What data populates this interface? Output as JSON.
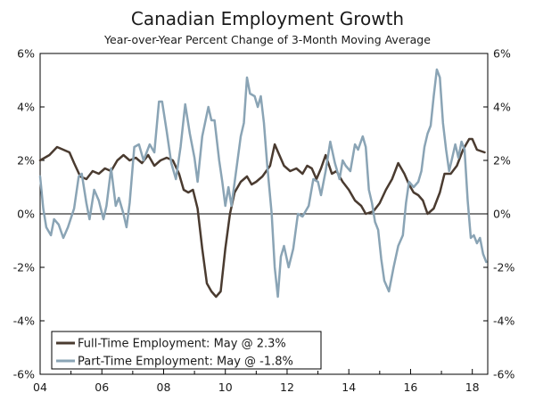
{
  "chart_data": {
    "type": "line",
    "title": "Canadian Employment Growth",
    "subtitle": "Year-over-Year Percent Change of 3-Month Moving Average",
    "xlabel": "",
    "ylabel": "",
    "xlim": [
      2004.0,
      2018.5
    ],
    "ylim": [
      -6,
      6
    ],
    "x_ticks": [
      2004,
      2006,
      2008,
      2010,
      2012,
      2014,
      2016,
      2018
    ],
    "x_tick_labels": [
      "04",
      "06",
      "08",
      "10",
      "12",
      "14",
      "16",
      "18"
    ],
    "y_ticks": [
      -6,
      -4,
      -2,
      0,
      2,
      4,
      6
    ],
    "y_tick_labels_left": [
      "-6%",
      "-4%",
      "-2%",
      "0%",
      "2%",
      "4%",
      "6%"
    ],
    "y_tick_labels_right": [
      "-6%",
      "-4%",
      "-2%",
      "0%",
      "2%",
      "4%",
      "6%"
    ],
    "legend_position": "bottom-left",
    "series": [
      {
        "name": "Full-Time Employment: May @ 2.3%",
        "color": "#4a3b30",
        "points": [
          [
            2004.0,
            2.0
          ],
          [
            2004.3,
            2.2
          ],
          [
            2004.55,
            2.5
          ],
          [
            2004.75,
            2.4
          ],
          [
            2004.95,
            2.3
          ],
          [
            2005.1,
            1.9
          ],
          [
            2005.3,
            1.4
          ],
          [
            2005.5,
            1.3
          ],
          [
            2005.7,
            1.6
          ],
          [
            2005.9,
            1.5
          ],
          [
            2006.1,
            1.7
          ],
          [
            2006.3,
            1.6
          ],
          [
            2006.5,
            2.0
          ],
          [
            2006.7,
            2.2
          ],
          [
            2006.9,
            2.0
          ],
          [
            2007.1,
            2.1
          ],
          [
            2007.3,
            1.9
          ],
          [
            2007.5,
            2.2
          ],
          [
            2007.7,
            1.8
          ],
          [
            2007.9,
            2.0
          ],
          [
            2008.1,
            2.1
          ],
          [
            2008.3,
            2.0
          ],
          [
            2008.5,
            1.5
          ],
          [
            2008.65,
            0.9
          ],
          [
            2008.8,
            0.8
          ],
          [
            2008.95,
            0.9
          ],
          [
            2009.1,
            0.2
          ],
          [
            2009.25,
            -1.3
          ],
          [
            2009.4,
            -2.6
          ],
          [
            2009.55,
            -2.9
          ],
          [
            2009.7,
            -3.1
          ],
          [
            2009.85,
            -2.9
          ],
          [
            2010.0,
            -1.3
          ],
          [
            2010.15,
            0.0
          ],
          [
            2010.3,
            0.8
          ],
          [
            2010.5,
            1.2
          ],
          [
            2010.7,
            1.4
          ],
          [
            2010.85,
            1.1
          ],
          [
            2011.0,
            1.2
          ],
          [
            2011.2,
            1.4
          ],
          [
            2011.45,
            1.8
          ],
          [
            2011.6,
            2.6
          ],
          [
            2011.75,
            2.2
          ],
          [
            2011.9,
            1.8
          ],
          [
            2012.1,
            1.6
          ],
          [
            2012.3,
            1.7
          ],
          [
            2012.5,
            1.5
          ],
          [
            2012.65,
            1.8
          ],
          [
            2012.8,
            1.7
          ],
          [
            2012.95,
            1.3
          ],
          [
            2013.1,
            1.7
          ],
          [
            2013.25,
            2.2
          ],
          [
            2013.45,
            1.5
          ],
          [
            2013.6,
            1.6
          ],
          [
            2013.8,
            1.2
          ],
          [
            2014.0,
            0.9
          ],
          [
            2014.2,
            0.5
          ],
          [
            2014.4,
            0.3
          ],
          [
            2014.55,
            0.0
          ],
          [
            2014.8,
            0.1
          ],
          [
            2015.0,
            0.4
          ],
          [
            2015.2,
            0.9
          ],
          [
            2015.4,
            1.3
          ],
          [
            2015.6,
            1.9
          ],
          [
            2015.8,
            1.5
          ],
          [
            2015.95,
            1.1
          ],
          [
            2016.1,
            0.8
          ],
          [
            2016.25,
            0.7
          ],
          [
            2016.4,
            0.5
          ],
          [
            2016.55,
            0.0
          ],
          [
            2016.75,
            0.2
          ],
          [
            2016.95,
            0.8
          ],
          [
            2017.1,
            1.5
          ],
          [
            2017.3,
            1.5
          ],
          [
            2017.5,
            1.8
          ],
          [
            2017.7,
            2.4
          ],
          [
            2017.9,
            2.8
          ],
          [
            2018.0,
            2.8
          ],
          [
            2018.15,
            2.4
          ],
          [
            2018.4,
            2.3
          ]
        ]
      },
      {
        "name": "Part-Time Employment: May @ -1.8%",
        "color": "#8aa4b5",
        "points": [
          [
            2004.0,
            1.4
          ],
          [
            2004.1,
            0.2
          ],
          [
            2004.2,
            -0.5
          ],
          [
            2004.35,
            -0.8
          ],
          [
            2004.45,
            -0.2
          ],
          [
            2004.6,
            -0.4
          ],
          [
            2004.75,
            -0.9
          ],
          [
            2004.9,
            -0.5
          ],
          [
            2005.1,
            0.2
          ],
          [
            2005.25,
            1.4
          ],
          [
            2005.35,
            1.5
          ],
          [
            2005.5,
            0.4
          ],
          [
            2005.6,
            -0.2
          ],
          [
            2005.75,
            0.9
          ],
          [
            2005.9,
            0.5
          ],
          [
            2006.05,
            -0.2
          ],
          [
            2006.15,
            0.3
          ],
          [
            2006.3,
            1.7
          ],
          [
            2006.45,
            0.3
          ],
          [
            2006.55,
            0.6
          ],
          [
            2006.7,
            0.0
          ],
          [
            2006.8,
            -0.5
          ],
          [
            2006.9,
            0.4
          ],
          [
            2007.05,
            2.5
          ],
          [
            2007.2,
            2.6
          ],
          [
            2007.35,
            2.0
          ],
          [
            2007.55,
            2.6
          ],
          [
            2007.7,
            2.3
          ],
          [
            2007.85,
            4.2
          ],
          [
            2007.95,
            4.2
          ],
          [
            2008.1,
            3.1
          ],
          [
            2008.25,
            1.9
          ],
          [
            2008.4,
            1.3
          ],
          [
            2008.55,
            2.5
          ],
          [
            2008.7,
            4.1
          ],
          [
            2008.85,
            3.0
          ],
          [
            2009.0,
            2.1
          ],
          [
            2009.1,
            1.2
          ],
          [
            2009.25,
            2.9
          ],
          [
            2009.45,
            4.0
          ],
          [
            2009.55,
            3.5
          ],
          [
            2009.65,
            3.5
          ],
          [
            2009.8,
            2.0
          ],
          [
            2009.9,
            1.2
          ],
          [
            2010.0,
            0.3
          ],
          [
            2010.1,
            1.0
          ],
          [
            2010.2,
            0.3
          ],
          [
            2010.35,
            1.6
          ],
          [
            2010.5,
            2.9
          ],
          [
            2010.6,
            3.4
          ],
          [
            2010.7,
            5.1
          ],
          [
            2010.8,
            4.5
          ],
          [
            2010.95,
            4.4
          ],
          [
            2011.05,
            4.0
          ],
          [
            2011.15,
            4.4
          ],
          [
            2011.25,
            3.4
          ],
          [
            2011.35,
            1.9
          ],
          [
            2011.5,
            0.0
          ],
          [
            2011.6,
            -2.0
          ],
          [
            2011.7,
            -3.1
          ],
          [
            2011.8,
            -1.6
          ],
          [
            2011.9,
            -1.2
          ],
          [
            2012.05,
            -2.0
          ],
          [
            2012.2,
            -1.3
          ],
          [
            2012.35,
            0.0
          ],
          [
            2012.5,
            -0.1
          ],
          [
            2012.7,
            0.3
          ],
          [
            2012.85,
            1.3
          ],
          [
            2013.0,
            1.2
          ],
          [
            2013.1,
            0.7
          ],
          [
            2013.25,
            1.6
          ],
          [
            2013.4,
            2.7
          ],
          [
            2013.55,
            1.9
          ],
          [
            2013.7,
            1.3
          ],
          [
            2013.8,
            2.0
          ],
          [
            2013.9,
            1.8
          ],
          [
            2014.05,
            1.6
          ],
          [
            2014.2,
            2.6
          ],
          [
            2014.3,
            2.4
          ],
          [
            2014.45,
            2.9
          ],
          [
            2014.55,
            2.5
          ],
          [
            2014.65,
            0.9
          ],
          [
            2014.75,
            0.4
          ],
          [
            2014.85,
            -0.3
          ],
          [
            2014.95,
            -0.6
          ],
          [
            2015.05,
            -1.7
          ],
          [
            2015.15,
            -2.5
          ],
          [
            2015.3,
            -2.9
          ],
          [
            2015.45,
            -2.0
          ],
          [
            2015.6,
            -1.2
          ],
          [
            2015.75,
            -0.8
          ],
          [
            2015.85,
            0.4
          ],
          [
            2015.95,
            1.2
          ],
          [
            2016.1,
            1.0
          ],
          [
            2016.25,
            1.2
          ],
          [
            2016.35,
            1.6
          ],
          [
            2016.45,
            2.5
          ],
          [
            2016.55,
            3.0
          ],
          [
            2016.65,
            3.3
          ],
          [
            2016.75,
            4.4
          ],
          [
            2016.85,
            5.4
          ],
          [
            2016.95,
            5.1
          ],
          [
            2017.05,
            3.4
          ],
          [
            2017.15,
            2.4
          ],
          [
            2017.25,
            1.6
          ],
          [
            2017.35,
            2.1
          ],
          [
            2017.45,
            2.6
          ],
          [
            2017.55,
            2.1
          ],
          [
            2017.65,
            2.7
          ],
          [
            2017.75,
            2.4
          ],
          [
            2017.85,
            0.5
          ],
          [
            2017.95,
            -0.9
          ],
          [
            2018.05,
            -0.8
          ],
          [
            2018.15,
            -1.1
          ],
          [
            2018.25,
            -0.9
          ],
          [
            2018.35,
            -1.5
          ],
          [
            2018.45,
            -1.8
          ]
        ]
      }
    ]
  }
}
